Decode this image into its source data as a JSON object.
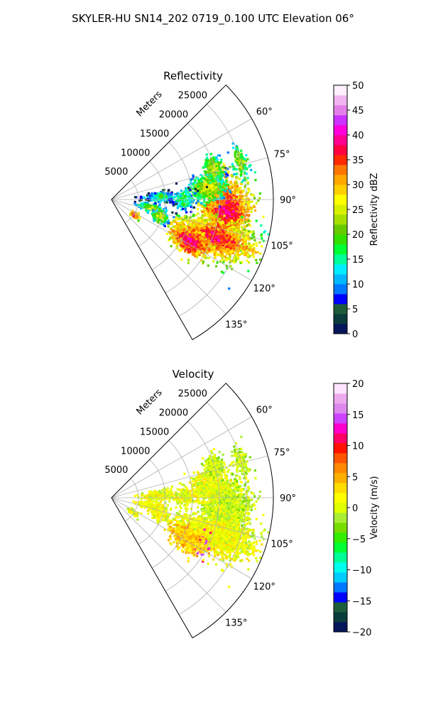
{
  "figure": {
    "suptitle": "SKYLER-HU  SN14_202  0719_0.100 UTC Elevation 06°"
  },
  "chart_data": [
    {
      "type": "heatmap",
      "projection": "polar-sector",
      "title": "Reflectivity",
      "range_label": "Meters",
      "range_ticks": [
        5000,
        10000,
        15000,
        20000,
        25000
      ],
      "range_tick_labels": [
        "5000",
        "10000",
        "15000",
        "20000",
        "25000"
      ],
      "range_max": 30000,
      "azimuth_range_deg": [
        45,
        150
      ],
      "azimuth_ticks_deg": [
        60,
        75,
        90,
        105,
        120,
        135
      ],
      "azimuth_tick_labels": [
        "60°",
        "75°",
        "90°",
        "105°",
        "120°",
        "135°"
      ],
      "grid": true,
      "colorbar": {
        "label": "Reflectivity dBZ",
        "range": [
          0,
          50
        ],
        "ticks": [
          0,
          5,
          10,
          15,
          20,
          25,
          30,
          35,
          40,
          45,
          50
        ],
        "tick_labels": [
          "0",
          "5",
          "10",
          "15",
          "20",
          "25",
          "30",
          "35",
          "40",
          "45",
          "50"
        ],
        "colormap": [
          "#05165a",
          "#0b3b3b",
          "#1d5c3a",
          "#0000ff",
          "#0077ff",
          "#00b7ff",
          "#00eeff",
          "#00ff99",
          "#00ff33",
          "#33e000",
          "#66cc00",
          "#a6e000",
          "#d9f000",
          "#ffff00",
          "#ffd000",
          "#ffa800",
          "#ff7700",
          "#ff2a00",
          "#ff0040",
          "#ff0090",
          "#ff00dd",
          "#cc33ff",
          "#e37fe8",
          "#f0b4f0",
          "#fff0ff"
        ]
      }
    },
    {
      "type": "heatmap",
      "projection": "polar-sector",
      "title": "Velocity",
      "range_label": "Meters",
      "range_ticks": [
        5000,
        10000,
        15000,
        20000,
        25000
      ],
      "range_tick_labels": [
        "5000",
        "10000",
        "15000",
        "20000",
        "25000"
      ],
      "range_max": 30000,
      "azimuth_range_deg": [
        45,
        150
      ],
      "azimuth_ticks_deg": [
        60,
        75,
        90,
        105,
        120,
        135
      ],
      "azimuth_tick_labels": [
        "60°",
        "75°",
        "90°",
        "105°",
        "120°",
        "135°"
      ],
      "grid": true,
      "colorbar": {
        "label": "Velocity (m/s)",
        "range": [
          -20,
          20
        ],
        "ticks": [
          -20,
          -15,
          -10,
          -5,
          0,
          5,
          10,
          15,
          20
        ],
        "tick_labels": [
          "−20",
          "−15",
          "−10",
          "−5",
          "0",
          "5",
          "10",
          "15",
          "20"
        ],
        "colormap": [
          "#05165a",
          "#0b3b3b",
          "#1d5c3a",
          "#0000ff",
          "#0077ff",
          "#00ccff",
          "#00ffee",
          "#00ff99",
          "#00ff33",
          "#33ee00",
          "#77dd00",
          "#aaee33",
          "#ddff00",
          "#ffff00",
          "#ffdd00",
          "#ffb000",
          "#ff8800",
          "#ff5500",
          "#ff1100",
          "#ff0066",
          "#ff00cc",
          "#cc44ff",
          "#dd88ee",
          "#eeaaee",
          "#ffe4ff"
        ]
      }
    }
  ]
}
